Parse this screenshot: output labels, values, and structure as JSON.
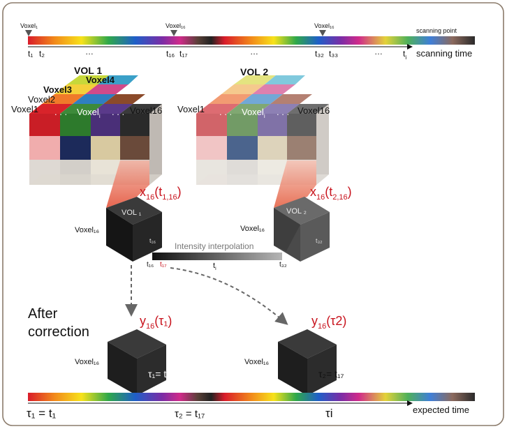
{
  "top_timeline": {
    "markers": [
      "Voxel₁",
      "Voxel₁₆",
      "Voxel₁₆"
    ],
    "scanning_point_label": "scanning point",
    "scanning_time_label": "scanning time",
    "ticks": [
      "t₁",
      "t₂",
      "…",
      "t₁₆",
      "t₁₇",
      "…",
      "t₃₂",
      "t₃₃",
      "…",
      "t"
    ],
    "tick_last_sub": "i"
  },
  "vol1": {
    "title": "VOL 1",
    "voxel_labels": [
      "Voxel4",
      "Voxel3",
      "Voxel2",
      "Voxel1",
      "Voxel",
      "Voxel16"
    ],
    "voxel_i_sub": "i",
    "dots": ". . .",
    "equation_main": "x",
    "equation_sub": "16",
    "equation_arg": "(t",
    "equation_arg_sub": "1,16",
    "equation_close": ")",
    "cube_label": "VOL ₁",
    "cube_side_label": "Voxel₁₆",
    "cube_corner": "t₁₆"
  },
  "vol2": {
    "title": "VOL 2",
    "voxel_labels": [
      "Voxel1",
      "Voxel",
      "Voxel16"
    ],
    "voxel_i_sub": "i",
    "dots": ". . .",
    "equation_main": "x",
    "equation_sub": "16",
    "equation_arg": "(t",
    "equation_arg_sub": "2,16",
    "equation_close": ")",
    "cube_label": "VOL ₂",
    "cube_side_label": "Voxel₁₆",
    "cube_corner": "t₃₂"
  },
  "interpolation": {
    "title": "Intensity interpolation",
    "left": "t₁₆",
    "left_red": "t₁₇",
    "middle": "t",
    "middle_sub": "i",
    "right": "t₃₂"
  },
  "after": {
    "heading_line1": "After",
    "heading_line2": "correction",
    "cube1_equation_main": "y",
    "cube1_equation_sub": "16",
    "cube1_equation_arg": "(τ₁)",
    "cube1_side_label": "Voxel₁₆",
    "cube1_relation": "τ₁= t₁",
    "cube2_equation_main": "y",
    "cube2_equation_sub": "16",
    "cube2_equation_arg": "(τ2)",
    "cube2_side_label": "Voxel₁₆",
    "cube2_relation": "τ₂= t₁₇"
  },
  "bottom_timeline": {
    "labels": [
      "τ₁ = t₁",
      "τ₂ = t₁₇",
      "τi"
    ],
    "expected_time_label": "expected time"
  }
}
